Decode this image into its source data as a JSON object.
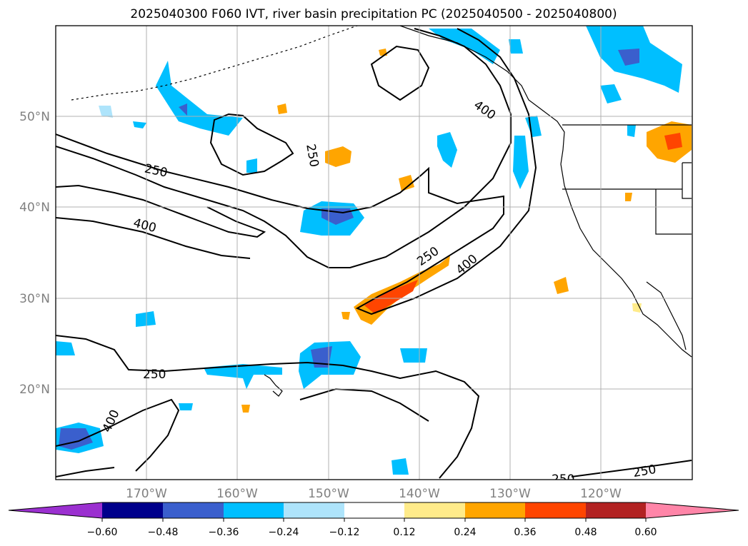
{
  "title": "2025040300 F060 IVT, river basin precipitation PC (2025040500 - 2025040800)",
  "map": {
    "lon_labels": [
      "170°W",
      "160°W",
      "150°W",
      "140°W",
      "130°W",
      "120°W"
    ],
    "lat_labels": [
      "50°N",
      "40°N",
      "30°N",
      "20°N"
    ],
    "contour_labels": [
      {
        "text": "250"
      },
      {
        "text": "250"
      },
      {
        "text": "400"
      },
      {
        "text": "400"
      },
      {
        "text": "250"
      },
      {
        "text": "400"
      },
      {
        "text": "250"
      },
      {
        "text": "400"
      },
      {
        "text": "250"
      },
      {
        "text": "250"
      }
    ],
    "ivt_contour_levels": [
      250,
      400
    ]
  },
  "colorbar": {
    "tick_labels": [
      "−0.60",
      "−0.48",
      "−0.36",
      "−0.24",
      "−0.12",
      "0.12",
      "0.24",
      "0.36",
      "0.48",
      "0.60"
    ],
    "colors": {
      "under": "#9b30d0",
      "b1": "#00008b",
      "b2": "#3a5fcd",
      "b3": "#00bfff",
      "b4": "#aee4fb",
      "b5": "#ffffff",
      "b6": "#ffeb8a",
      "b7": "#ffa500",
      "b8": "#ff4500",
      "b9": "#b22222",
      "over": "#ff85a8"
    }
  },
  "colors": {
    "axis_label": "#808080",
    "grid": "#b0b0b0",
    "contour": "#000000"
  }
}
